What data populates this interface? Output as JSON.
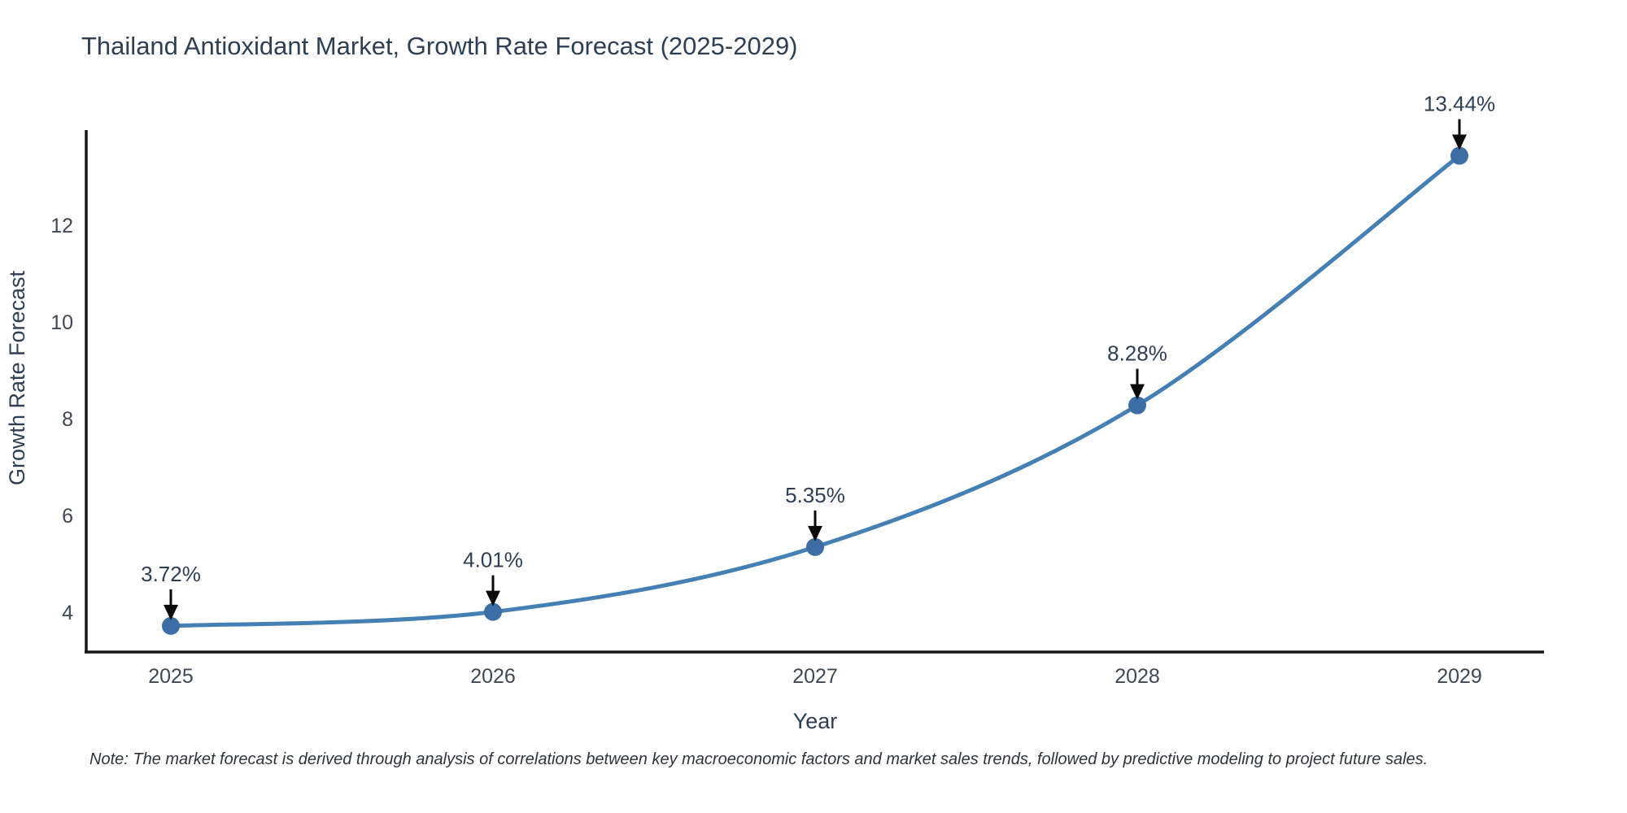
{
  "chart_data": {
    "type": "line",
    "title": "Thailand Antioxidant Market, Growth Rate Forecast (2025-2029)",
    "xlabel": "Year",
    "ylabel": "Growth Rate Forecast",
    "categories": [
      "2025",
      "2026",
      "2027",
      "2028",
      "2029"
    ],
    "series": [
      {
        "name": "Growth Rate Forecast",
        "values": [
          3.72,
          4.01,
          5.35,
          8.28,
          13.44
        ]
      }
    ],
    "point_labels": [
      "3.72%",
      "4.01%",
      "5.35%",
      "8.28%",
      "13.44%"
    ],
    "yticks": [
      4,
      6,
      8,
      10,
      12
    ],
    "ylim": [
      3.18,
      13.97
    ],
    "line_shape": "spline",
    "grid": false,
    "legend_position": "none",
    "colors": {
      "line": "#4580b4",
      "marker": "#3c6ea5",
      "axis_line": "#161616",
      "arrow": "#0a0a0a",
      "tick_text": "#3e4854",
      "title_text": "#2e3f54"
    }
  },
  "note": {
    "text": "Note: The market forecast is derived through analysis of correlations between key macroeconomic factors and market sales trends, followed by predictive modeling to project future sales."
  }
}
